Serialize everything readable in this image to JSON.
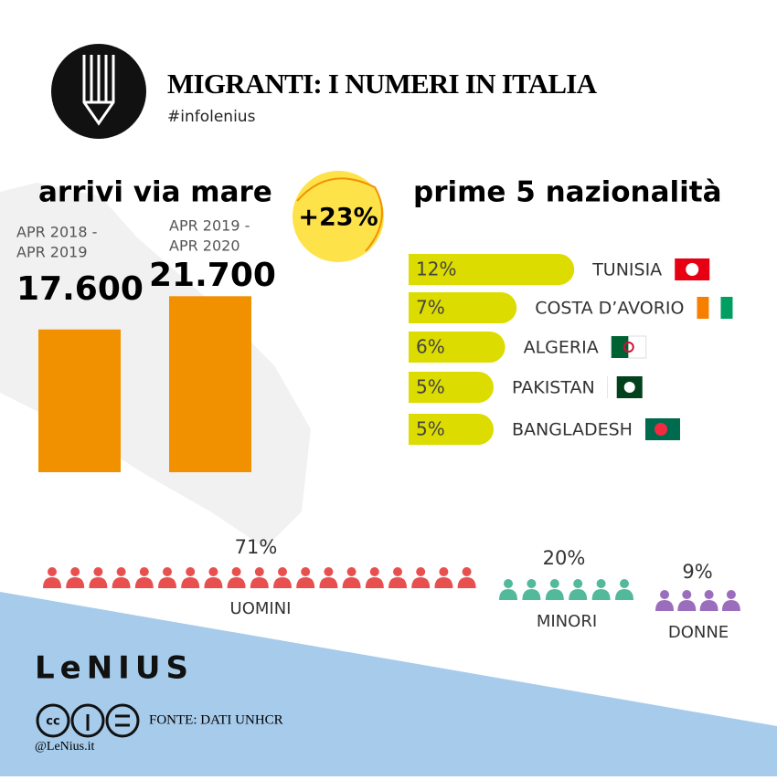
{
  "header": {
    "title": "MIGRANTI: I NUMERI IN ITALIA",
    "hashtag": "#infolenius"
  },
  "arrivals": {
    "title": "arrivi via mare",
    "change": "+23%",
    "periods": [
      {
        "label_lines": [
          "APR 2018 -",
          "APR 2019"
        ],
        "value": 17600,
        "value_label": "17.600",
        "color": "#f29100"
      },
      {
        "label_lines": [
          "APR 2019 -",
          "APR 2020"
        ],
        "value": 21700,
        "value_label": "21.700",
        "color": "#f29100"
      }
    ]
  },
  "nationalities": {
    "title": "prime 5 nazionalità",
    "color": "#dcdc00",
    "items": [
      {
        "name": "TUNISIA",
        "value": 12,
        "value_label": "12%"
      },
      {
        "name": "COSTA D’AVORIO",
        "value": 7,
        "value_label": "7%"
      },
      {
        "name": "ALGERIA",
        "value": 6,
        "value_label": "6%"
      },
      {
        "name": "PAKISTAN",
        "value": 5,
        "value_label": "5%"
      },
      {
        "name": "BANGLADESH",
        "value": 5,
        "value_label": "5%"
      }
    ]
  },
  "gender": {
    "groups": [
      {
        "name": "UOMINI",
        "value": 71,
        "value_label": "71%",
        "color": "#e8504f"
      },
      {
        "name": "MINORI",
        "value": 20,
        "value_label": "20%",
        "color": "#52b99a"
      },
      {
        "name": "DONNE",
        "value": 9,
        "value_label": "9%",
        "color": "#9b6dbd"
      }
    ]
  },
  "footer": {
    "brand": "LeNIUS",
    "source": "FONTE: DATI UNHCR",
    "handle": "@LeNius.it"
  }
}
